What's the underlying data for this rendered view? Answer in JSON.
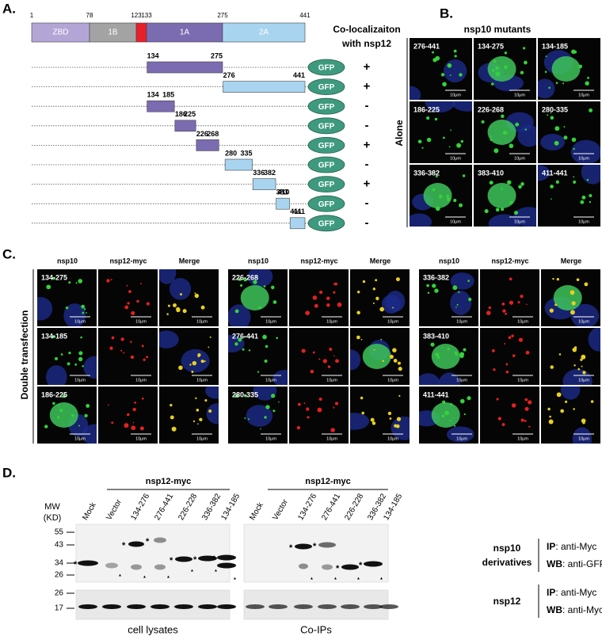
{
  "panel_a": {
    "label": "A.",
    "domain_positions": [
      1,
      78,
      123,
      133,
      275,
      441
    ],
    "domains": [
      "ZBD",
      "1B",
      null,
      "1A",
      "2A"
    ],
    "header": [
      "Co-localizaiton",
      "with nsp12"
    ],
    "tag": "GFP",
    "constructs": [
      {
        "start": 134,
        "end": 275,
        "result": "+"
      },
      {
        "start": 276,
        "end": 441,
        "result": "+"
      },
      {
        "start": 134,
        "end": 185,
        "result": "-"
      },
      {
        "start": 186,
        "end": 225,
        "result": "-"
      },
      {
        "start": 226,
        "end": 268,
        "result": "+"
      },
      {
        "start": 280,
        "end": 335,
        "result": "-"
      },
      {
        "start": 336,
        "end": 382,
        "result": "+"
      },
      {
        "start": 383,
        "end": 410,
        "result": "-"
      },
      {
        "start": 411,
        "end": 441,
        "result": "-"
      }
    ]
  },
  "panel_b": {
    "label": "B.",
    "title": "nsp10 mutants",
    "side_label": "Alone",
    "cells": [
      "276-441",
      "134-275",
      "134-185",
      "186-225",
      "226-268",
      "280-335",
      "336-382",
      "383-410",
      "411-441"
    ],
    "scale": "10μm"
  },
  "panel_c": {
    "label": "C.",
    "side_label": "Double transfection",
    "columns": [
      "nsp10",
      "nsp12-myc",
      "Merge"
    ],
    "groups": [
      [
        "134-275",
        "134-185",
        "186-225"
      ],
      [
        "226-268",
        "276-441",
        "280-335"
      ],
      [
        "336-382",
        "383-410",
        "411-441"
      ]
    ],
    "scale": "10μm"
  },
  "panel_d": {
    "label": "D.",
    "group_label": "nsp12-myc",
    "lanes": [
      "Mock",
      "Vector",
      "134-276",
      "276-441",
      "226-228",
      "336-382",
      "134-185"
    ],
    "mw": [
      "MW",
      "(KD)"
    ],
    "markers_upper": [
      55,
      43,
      34,
      26
    ],
    "markers_lower": [
      26,
      17
    ],
    "band_marker": "*",
    "cleavage_marker": "▲",
    "captions": [
      "cell lysates",
      "Co-IPs"
    ],
    "rows": [
      {
        "name": [
          "nsp10",
          "derivatives"
        ],
        "ip": "IP",
        "ip_text": ": anti-Myc",
        "wb": "WB",
        "wb_text": ": anti-GFP"
      },
      {
        "name": [
          "nsp12"
        ],
        "ip": "IP",
        "ip_text": ":  anti-Myc",
        "wb": "WB",
        "wb_text": ": anti-Myc"
      }
    ]
  }
}
